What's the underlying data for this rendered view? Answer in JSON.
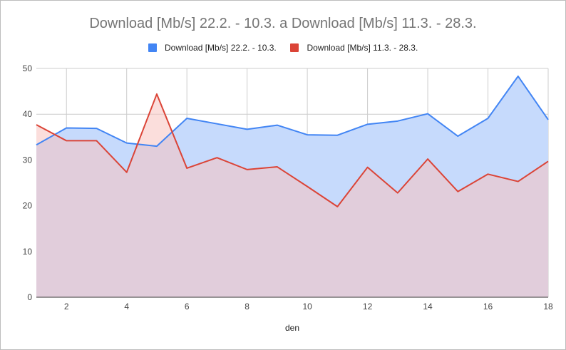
{
  "chart_data": {
    "type": "area",
    "title": "Download [Mb/s] 22.2. - 10.3. a Download [Mb/s] 11.3. - 28.3.",
    "xlabel": "den",
    "ylabel": "",
    "xlim": [
      1,
      18
    ],
    "ylim": [
      0,
      50
    ],
    "x_ticks": [
      2,
      4,
      6,
      8,
      10,
      12,
      14,
      16,
      18
    ],
    "y_ticks": [
      0,
      10,
      20,
      30,
      40,
      50
    ],
    "grid": true,
    "legend_position": "top",
    "x": [
      1,
      2,
      3,
      4,
      5,
      6,
      7,
      8,
      9,
      10,
      11,
      12,
      13,
      14,
      15,
      16,
      17,
      18
    ],
    "series": [
      {
        "name": "Download [Mb/s] 22.2. - 10.3.",
        "color": "#4285f4",
        "fill": "#c6dafc",
        "values": [
          33.3,
          37.0,
          36.9,
          33.7,
          33.0,
          39.1,
          37.9,
          36.7,
          37.6,
          35.5,
          35.4,
          37.8,
          38.5,
          40.1,
          35.2,
          39.1,
          48.3,
          38.8
        ]
      },
      {
        "name": "Download [Mb/s] 11.3. - 28.3.",
        "color": "#db4437",
        "fill": "#f8c3bf",
        "values": [
          37.7,
          34.2,
          34.2,
          27.3,
          44.4,
          28.2,
          30.5,
          27.9,
          28.5,
          24.2,
          19.8,
          28.4,
          22.8,
          30.2,
          23.1,
          26.9,
          25.3,
          29.7
        ]
      }
    ]
  }
}
